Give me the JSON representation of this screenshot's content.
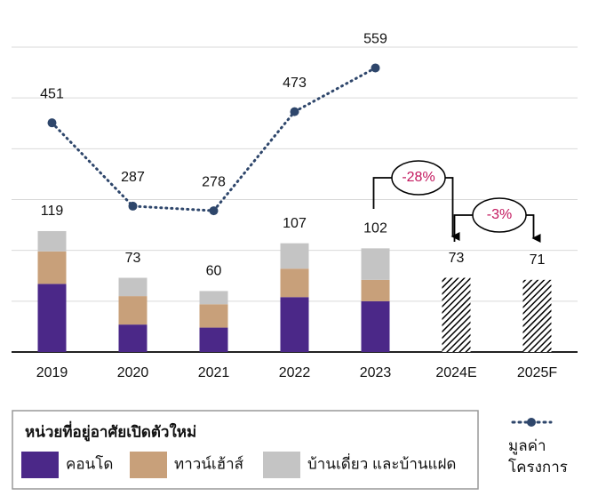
{
  "chart_data": {
    "type": "bar",
    "categories": [
      "2019",
      "2020",
      "2021",
      "2022",
      "2023",
      "2024E",
      "2025F"
    ],
    "series": [
      {
        "name": "คอนโด",
        "color": "#4b2888",
        "values": [
          67,
          27,
          24,
          54,
          50,
          null,
          null
        ]
      },
      {
        "name": "ทาวน์เฮ้าส์",
        "color": "#c8a07a",
        "values": [
          32,
          28,
          23,
          28,
          21,
          null,
          null
        ]
      },
      {
        "name": "บ้านเดี่ยว  และบ้านแฝด",
        "color": "#c4c4c4",
        "values": [
          20,
          18,
          13,
          25,
          31,
          null,
          null
        ]
      },
      {
        "name": "มูลค่า โครงการ",
        "type": "line",
        "color": "#2e466b",
        "axis": "y2",
        "values": [
          451,
          287,
          278,
          473,
          559,
          null,
          null
        ]
      }
    ],
    "forecast": [
      null,
      null,
      null,
      null,
      null,
      73,
      71
    ],
    "totals": [
      119,
      73,
      60,
      107,
      102,
      73,
      71
    ],
    "legend_title": "หน่วยที่อยู่อาศัยเปิดตัวใหม่",
    "annotations": [
      {
        "text": "-28%",
        "from": 4,
        "to": 5
      },
      {
        "text": "-3%",
        "from": 5,
        "to": 6
      }
    ],
    "ylim": [
      0,
      300
    ],
    "yticks": [
      0,
      50,
      100,
      150,
      200,
      250,
      300
    ],
    "y2lim": [
      0,
      600
    ],
    "grid": true
  }
}
